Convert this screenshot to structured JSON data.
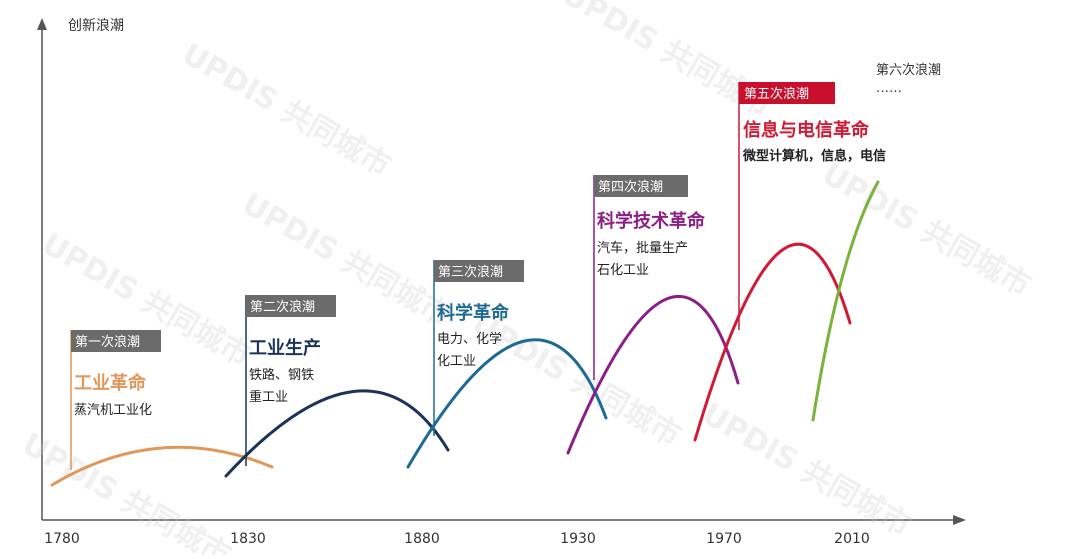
{
  "axis": {
    "y_label": "创新浪潮",
    "x_ticks": [
      "1780",
      "1830",
      "1880",
      "1930",
      "1970",
      "2010"
    ]
  },
  "waves": [
    {
      "tag": "第一次浪潮",
      "title": "工业革命",
      "lines": [
        "蒸汽机工业化"
      ],
      "color": "#e2975a",
      "tag_color": "#6b6b6b"
    },
    {
      "tag": "第二次浪潮",
      "title": "工业生产",
      "lines": [
        "铁路、钢铁",
        "重工业"
      ],
      "color": "#1a3358",
      "tag_color": "#6b6b6b"
    },
    {
      "tag": "第三次浪潮",
      "title": "科学革命",
      "lines": [
        "电力、化学",
        "化工业"
      ],
      "color": "#1f6a93",
      "tag_color": "#6b6b6b"
    },
    {
      "tag": "第四次浪潮",
      "title": "科学技术革命",
      "lines": [
        "汽车，批量生产",
        "石化工业"
      ],
      "color": "#8c1f86",
      "tag_color": "#6b6b6b"
    },
    {
      "tag": "第五次浪潮",
      "title": "信息与电信革命",
      "lines": [
        "微型计算机，信息，电信"
      ],
      "color": "#d11a36",
      "tag_color": "#c8102e"
    },
    {
      "tag": "第六次浪潮",
      "lines": [
        "……"
      ],
      "color": "#7ab33a"
    }
  ],
  "watermark": "UPDIS 共同城市"
}
